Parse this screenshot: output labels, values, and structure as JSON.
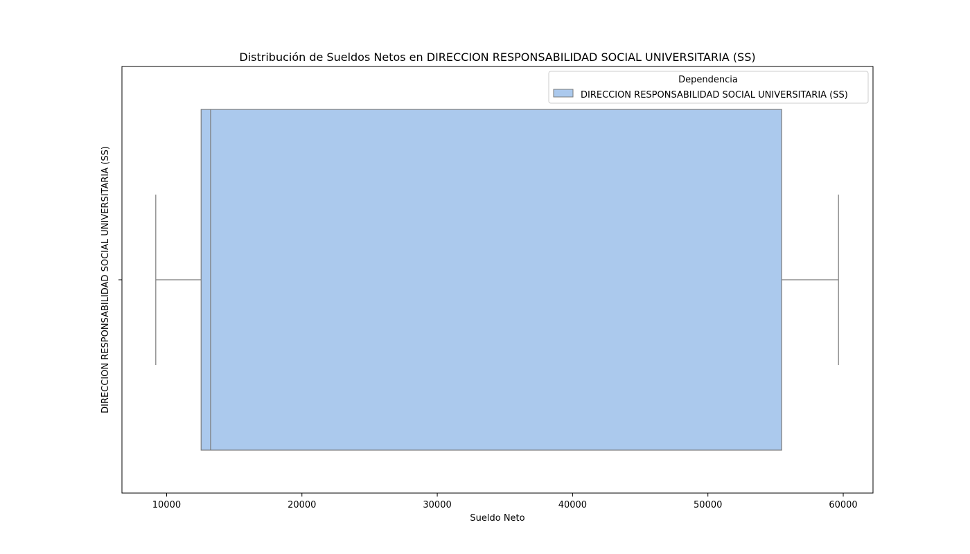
{
  "chart_data": {
    "type": "boxplot",
    "orientation": "horizontal",
    "title": "Distribución de Sueldos Netos en DIRECCION RESPONSABILIDAD SOCIAL UNIVERSITARIA (SS)",
    "xlabel": "Sueldo Neto",
    "ylabel": "DIRECCION RESPONSABILIDAD SOCIAL UNIVERSITARIA (SS)",
    "xlim": [
      6700,
      62200
    ],
    "xticks": [
      10000,
      20000,
      30000,
      40000,
      50000,
      60000
    ],
    "xtick_labels": [
      "10000",
      "20000",
      "30000",
      "40000",
      "50000",
      "60000"
    ],
    "grid": false,
    "legend": {
      "title": "Dependencia",
      "placement": "top-right",
      "entries": [
        "DIRECCION RESPONSABILIDAD SOCIAL UNIVERSITARIA (SS)"
      ]
    },
    "series": [
      {
        "name": "DIRECCION RESPONSABILIDAD SOCIAL UNIVERSITARIA (SS)",
        "whisker_low": 9200,
        "q1": 12550,
        "median": 13250,
        "q3": 55450,
        "whisker_high": 59650
      }
    ],
    "colors": {
      "box_fill": "#abc9ed",
      "box_edge": "#7a7a7a",
      "axes": "#000000"
    }
  }
}
